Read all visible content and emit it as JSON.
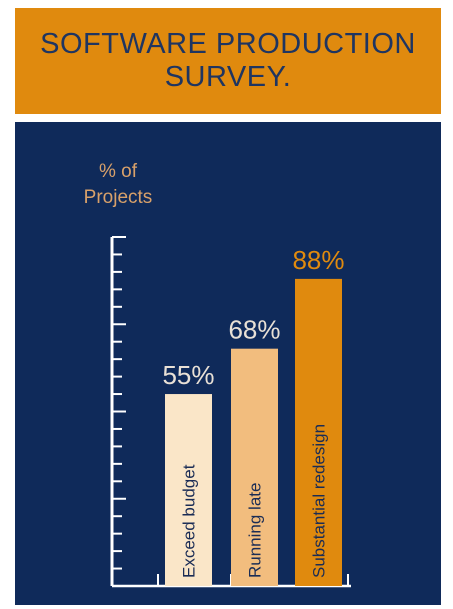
{
  "title_lines": [
    "SOFTWARE PRODUCTION",
    "SURVEY."
  ],
  "colors": {
    "header": "#e08a0e",
    "panel": "#0f2a5a",
    "title_text": "#1f3561",
    "axis": "#ffffff",
    "ylabel": "#d9a16a"
  },
  "chart_data": {
    "type": "bar",
    "title": "SOFTWARE PRODUCTION SURVEY.",
    "ylabel_lines": [
      "% of",
      "Projects"
    ],
    "categories": [
      "Exceed budget",
      "Running late",
      "Substantial redesign"
    ],
    "values": [
      55,
      68,
      88
    ],
    "value_labels": [
      "55%",
      "68%",
      "88%"
    ],
    "bar_colors": [
      "#fae6c8",
      "#f2bd7e",
      "#e08a0e"
    ],
    "ylim": [
      0,
      100
    ],
    "grid": false,
    "legend": "none"
  }
}
